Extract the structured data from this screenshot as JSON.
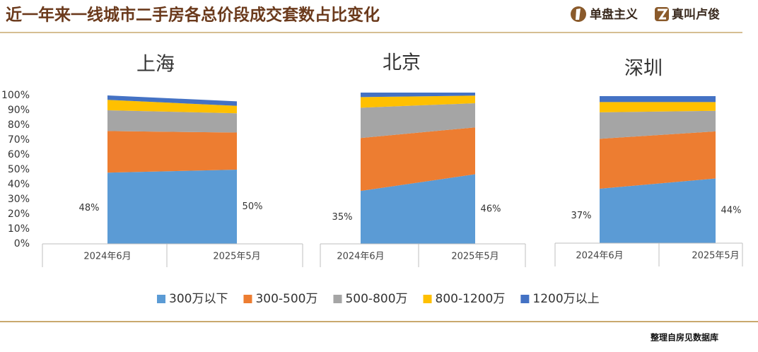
{
  "header": {
    "title": "近一年来一线城市二手房各总价段成交套数占比变化",
    "logos": [
      "单盘主义",
      "真叫卢俊"
    ]
  },
  "chart_data": [
    {
      "type": "area",
      "stacked": true,
      "title": "上海",
      "categories": [
        "2024年6月",
        "2025年5月"
      ],
      "ylim": [
        0,
        100
      ],
      "yticks": [
        {
          "value": 0,
          "label": "0%"
        },
        {
          "value": 10,
          "label": "10%"
        },
        {
          "value": 20,
          "label": "20%"
        },
        {
          "value": 30,
          "label": "30%"
        },
        {
          "value": 40,
          "label": "40%"
        },
        {
          "value": 50,
          "label": "50%"
        },
        {
          "value": 60,
          "label": "60%"
        },
        {
          "value": 70,
          "label": "70%"
        },
        {
          "value": 80,
          "label": "80%"
        },
        {
          "value": 90,
          "label": "90%"
        },
        {
          "value": 100,
          "label": "100%"
        }
      ],
      "series": [
        {
          "name": "300万以下",
          "color": "#5b9bd5",
          "values": [
            48,
            50
          ],
          "value_labels": [
            "48%",
            "50%"
          ]
        },
        {
          "name": "300-500万",
          "color": "#ed7d31",
          "values": [
            28,
            25
          ]
        },
        {
          "name": "500-800万",
          "color": "#a5a5a5",
          "values": [
            14,
            13
          ]
        },
        {
          "name": "800-1200万",
          "color": "#ffc000",
          "values": [
            7,
            5
          ]
        },
        {
          "name": "1200万以上",
          "color": "#4472c4",
          "values": [
            3,
            3
          ]
        }
      ]
    },
    {
      "type": "area",
      "stacked": true,
      "title": "北京",
      "categories": [
        "2024年6月",
        "2025年5月"
      ],
      "ylim": [
        0,
        100
      ],
      "series": [
        {
          "color": "#5b9bd5",
          "values": [
            35,
            46
          ],
          "value_labels": [
            "35%",
            "46%"
          ]
        },
        {
          "color": "#ed7d31",
          "values": [
            35,
            31
          ]
        },
        {
          "color": "#a5a5a5",
          "values": [
            20,
            16
          ]
        },
        {
          "color": "#ffc000",
          "values": [
            7,
            5
          ]
        },
        {
          "color": "#4472c4",
          "values": [
            3,
            2
          ]
        }
      ]
    },
    {
      "type": "area",
      "stacked": true,
      "title": "深圳",
      "categories": [
        "2024年6月",
        "2025年5月"
      ],
      "ylim": [
        0,
        100
      ],
      "series": [
        {
          "color": "#5b9bd5",
          "values": [
            37,
            44
          ],
          "value_labels": [
            "37%",
            "44%"
          ]
        },
        {
          "color": "#ed7d31",
          "values": [
            34,
            32
          ]
        },
        {
          "color": "#a5a5a5",
          "values": [
            18,
            14
          ]
        },
        {
          "color": "#ffc000",
          "values": [
            7,
            6
          ]
        },
        {
          "color": "#4472c4",
          "values": [
            4,
            4
          ]
        }
      ]
    }
  ],
  "footer": {
    "source": "整理自房见数据库"
  }
}
